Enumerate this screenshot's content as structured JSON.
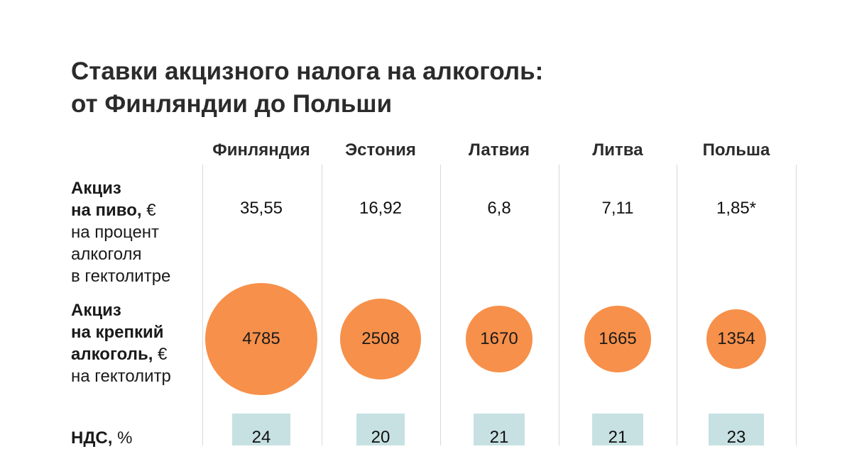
{
  "chart_data": {
    "type": "table",
    "title_lines": [
      "Ставки акцизного налога на алкоголь:",
      "от Финляндии до Польши"
    ],
    "countries": [
      "Финляндия",
      "Эстония",
      "Латвия",
      "Литва",
      "Польша"
    ],
    "rows": {
      "beer": {
        "label_lines": [
          {
            "bold": "Акциз",
            "normal": ""
          },
          {
            "bold": "на пиво,",
            "normal": " €"
          },
          {
            "bold": "",
            "normal": "на процент"
          },
          {
            "bold": "",
            "normal": "алкоголя"
          },
          {
            "bold": "",
            "normal": "в гектолитре"
          }
        ],
        "values": [
          "35,55",
          "16,92",
          "6,8",
          "7,11",
          "1,85*"
        ]
      },
      "spirits": {
        "label_lines": [
          {
            "bold": "Акциз",
            "normal": ""
          },
          {
            "bold": "на крепкий",
            "normal": ""
          },
          {
            "bold": "алкоголь,",
            "normal": " €"
          },
          {
            "bold": "",
            "normal": "на гектолитр"
          }
        ],
        "values": [
          4785,
          2508,
          1670,
          1665,
          1354
        ],
        "bubble_color": "#f7904a"
      },
      "vat": {
        "label_lines": [
          {
            "bold": "НДС,",
            "normal": " %"
          }
        ],
        "values": [
          24,
          20,
          21,
          21,
          23
        ],
        "bar_color": "#c7e1e2"
      }
    }
  }
}
